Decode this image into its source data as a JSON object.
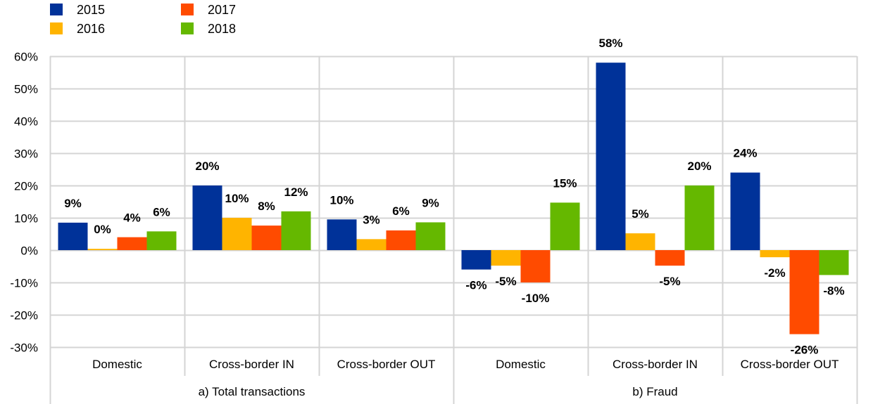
{
  "chart_data": {
    "type": "bar",
    "title": "",
    "xlabel": "",
    "ylabel": "",
    "ylim": [
      -30,
      60
    ],
    "y_ticks": [
      60,
      50,
      40,
      30,
      20,
      10,
      0,
      -10,
      -20,
      -30
    ],
    "y_tick_labels": [
      "60%",
      "50%",
      "40%",
      "30%",
      "20%",
      "10%",
      "0%",
      "-10%",
      "-20%",
      "-30%"
    ],
    "grid": true,
    "legend_position": "top-left",
    "groups": [
      {
        "label": "a) Total transactions",
        "categories": [
          "Domestic",
          "Cross-border IN",
          "Cross-border OUT"
        ]
      },
      {
        "label": "b) Fraud",
        "categories": [
          "Domestic",
          "Cross-border IN",
          "Cross-border OUT"
        ]
      }
    ],
    "categories": [
      "Domestic",
      "Cross-border IN",
      "Cross-border OUT",
      "Domestic",
      "Cross-border IN",
      "Cross-border OUT"
    ],
    "series": [
      {
        "name": "2015",
        "color": "#003299",
        "values": [
          8.5,
          20,
          9.5,
          -6,
          58,
          24
        ],
        "labels": [
          "9%",
          "20%",
          "10%",
          "-6%",
          "58%",
          "24%"
        ]
      },
      {
        "name": "2016",
        "color": "#FFB400",
        "values": [
          0.4,
          10,
          3.4,
          -4.8,
          5.2,
          -2.2
        ],
        "labels": [
          "0%",
          "10%",
          "3%",
          "-5%",
          "5%",
          "-2%"
        ]
      },
      {
        "name": "2017",
        "color": "#FF4B00",
        "values": [
          4,
          7.6,
          6.1,
          -10,
          -4.8,
          -26
        ],
        "labels": [
          "4%",
          "8%",
          "6%",
          "-10%",
          "-5%",
          "-26%"
        ]
      },
      {
        "name": "2018",
        "color": "#65B800",
        "values": [
          5.8,
          12,
          8.6,
          14.7,
          20,
          -7.7
        ],
        "labels": [
          "6%",
          "12%",
          "9%",
          "15%",
          "20%",
          "-8%"
        ]
      }
    ]
  }
}
